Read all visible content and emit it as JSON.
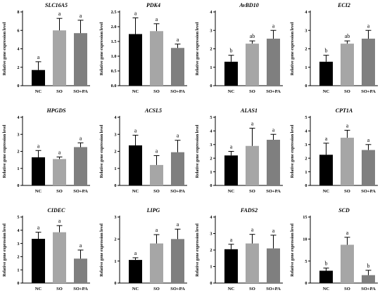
{
  "figure": {
    "ylabel": "Relative gene expression level",
    "categories": [
      "NC",
      "SO",
      "SO+PA"
    ],
    "bar_colors": [
      "#000000",
      "#a6a6a6",
      "#7f7f7f"
    ]
  },
  "chart_data": [
    {
      "type": "bar",
      "title": "SLC16A5",
      "categories": [
        "NC",
        "SO",
        "SO+PA"
      ],
      "values": [
        1.7,
        6.0,
        5.7
      ],
      "errors": [
        0.9,
        1.3,
        1.4
      ],
      "letters": [
        "a",
        "a",
        "a"
      ],
      "ylim": [
        0,
        8
      ],
      "yticks": [
        0,
        2,
        4,
        6,
        8
      ],
      "ylabel": "Relative gene expression level"
    },
    {
      "type": "bar",
      "title": "PDK4",
      "categories": [
        "NC",
        "SO",
        "SO+PA"
      ],
      "values": [
        1.75,
        1.85,
        1.28
      ],
      "errors": [
        0.55,
        0.25,
        0.13
      ],
      "letters": [
        "a",
        "a",
        "a"
      ],
      "ylim": [
        0,
        2.5
      ],
      "yticks": [
        0.0,
        0.5,
        1.0,
        1.5,
        2.0,
        2.5
      ],
      "ylabel": "Relative gene expression level"
    },
    {
      "type": "bar",
      "title": "AvBD10",
      "categories": [
        "NC",
        "SO",
        "SO+PA"
      ],
      "values": [
        1.3,
        2.28,
        2.55
      ],
      "errors": [
        0.35,
        0.15,
        0.45
      ],
      "letters": [
        "b",
        "ab",
        "a"
      ],
      "ylim": [
        0,
        4
      ],
      "yticks": [
        0,
        1,
        2,
        3,
        4
      ],
      "ylabel": "Relative gene expression level"
    },
    {
      "type": "bar",
      "title": "ECI2",
      "categories": [
        "NC",
        "SO",
        "SO+PA"
      ],
      "values": [
        1.3,
        2.28,
        2.55
      ],
      "errors": [
        0.35,
        0.15,
        0.45
      ],
      "letters": [
        "b",
        "ab",
        "a"
      ],
      "ylim": [
        0,
        4
      ],
      "yticks": [
        0,
        1,
        2,
        3,
        4
      ],
      "ylabel": "Relative gene expression level"
    },
    {
      "type": "bar",
      "title": "HPGDS",
      "categories": [
        "NC",
        "SO",
        "SO+PA"
      ],
      "values": [
        1.65,
        1.55,
        2.25
      ],
      "errors": [
        0.4,
        0.12,
        0.25
      ],
      "letters": [
        "a",
        "a",
        "a"
      ],
      "ylim": [
        0,
        4
      ],
      "yticks": [
        0,
        1,
        2,
        3,
        4
      ],
      "ylabel": "Relative gene expression level"
    },
    {
      "type": "bar",
      "title": "ACSL5",
      "categories": [
        "NC",
        "SO",
        "SO+PA"
      ],
      "values": [
        2.35,
        1.2,
        1.95
      ],
      "errors": [
        0.6,
        0.55,
        0.7
      ],
      "letters": [
        "a",
        "a",
        "a"
      ],
      "ylim": [
        0,
        4
      ],
      "yticks": [
        0,
        1,
        2,
        3,
        4
      ],
      "ylabel": "Relative gene expression level"
    },
    {
      "type": "bar",
      "title": "ALAS1",
      "categories": [
        "NC",
        "SO",
        "SO+PA"
      ],
      "values": [
        2.2,
        2.9,
        3.35
      ],
      "errors": [
        0.3,
        1.3,
        0.4
      ],
      "letters": [
        "a",
        "a",
        "a"
      ],
      "ylim": [
        0,
        5
      ],
      "yticks": [
        0,
        1,
        2,
        3,
        4,
        5
      ],
      "ylabel": "Relative gene expression level"
    },
    {
      "type": "bar",
      "title": "CPT1A",
      "categories": [
        "NC",
        "SO",
        "SO+PA"
      ],
      "values": [
        2.25,
        3.5,
        2.6
      ],
      "errors": [
        0.85,
        0.55,
        0.4
      ],
      "letters": [
        "a",
        "a",
        "a"
      ],
      "ylim": [
        0,
        5
      ],
      "yticks": [
        0,
        1,
        2,
        3,
        4,
        5
      ],
      "ylabel": "Relative gene expression level"
    },
    {
      "type": "bar",
      "title": "CIDEC",
      "categories": [
        "NC",
        "SO",
        "SO+PA"
      ],
      "values": [
        3.35,
        3.85,
        1.85
      ],
      "errors": [
        0.5,
        0.5,
        0.65
      ],
      "letters": [
        "a",
        "a",
        "a"
      ],
      "ylim": [
        0,
        5
      ],
      "yticks": [
        0,
        1,
        2,
        3,
        4,
        5
      ],
      "ylabel": "Relative gene expression level"
    },
    {
      "type": "bar",
      "title": "LIPG",
      "categories": [
        "NC",
        "SO",
        "SO+PA"
      ],
      "values": [
        1.05,
        1.8,
        2.0
      ],
      "errors": [
        0.1,
        0.4,
        0.45
      ],
      "letters": [
        "a",
        "a",
        "a"
      ],
      "ylim": [
        0,
        3
      ],
      "yticks": [
        0,
        1,
        2,
        3
      ],
      "ylabel": "Relative gene expression level"
    },
    {
      "type": "bar",
      "title": "FADS2",
      "categories": [
        "NC",
        "SO",
        "SO+PA"
      ],
      "values": [
        2.05,
        2.4,
        2.1
      ],
      "errors": [
        0.3,
        0.55,
        0.8
      ],
      "letters": [
        "a",
        "a",
        "a"
      ],
      "ylim": [
        0,
        4
      ],
      "yticks": [
        0,
        1,
        2,
        3,
        4
      ],
      "ylabel": "Relative gene expression level"
    },
    {
      "type": "bar",
      "title": "SCD",
      "categories": [
        "NC",
        "SO",
        "SO+PA"
      ],
      "values": [
        2.8,
        8.7,
        1.8
      ],
      "errors": [
        0.6,
        1.7,
        1.1
      ],
      "letters": [
        "b",
        "a",
        "b"
      ],
      "ylim": [
        0,
        15
      ],
      "yticks": [
        0,
        5,
        10,
        15
      ],
      "ylabel": "Relative gene expression level"
    }
  ]
}
